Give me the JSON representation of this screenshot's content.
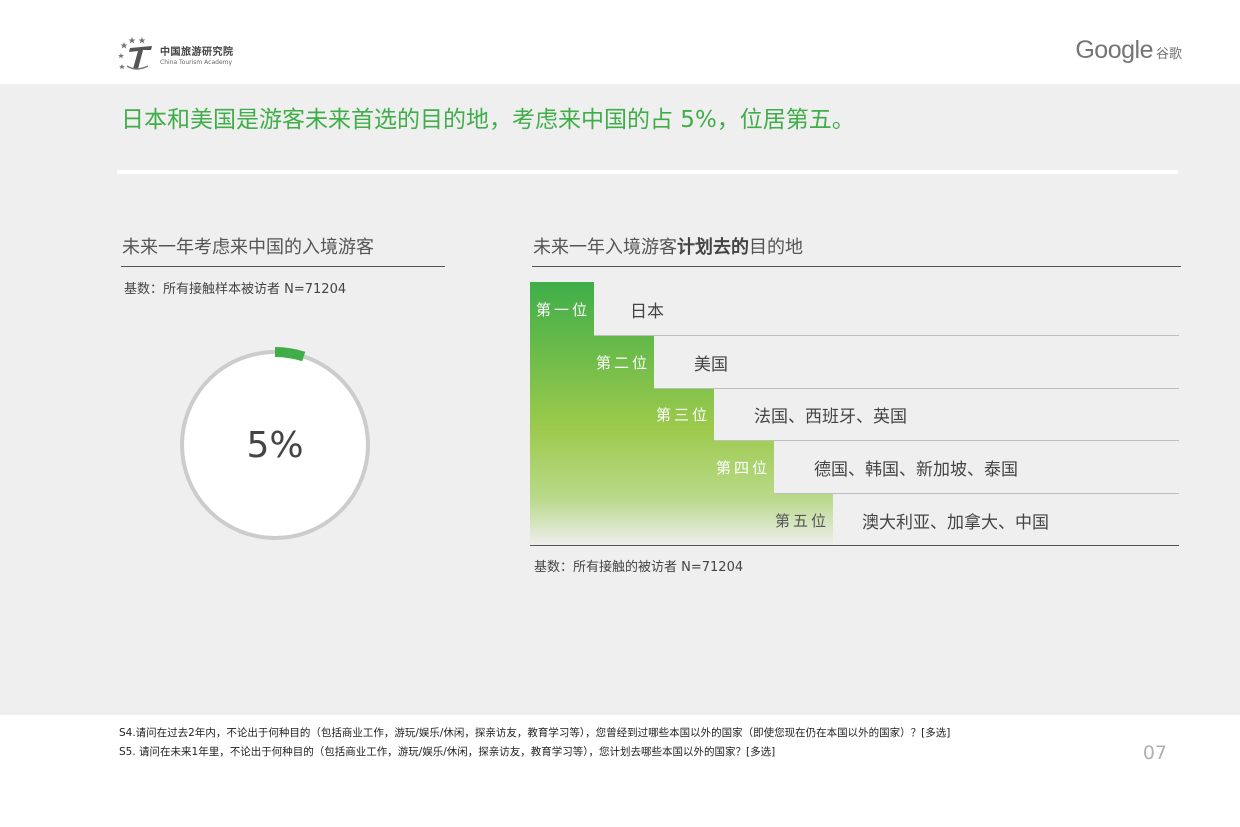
{
  "header": {
    "org_name_cn": "中国旅游研究院",
    "org_name_en": "China Tourism Academy",
    "brand": "Google",
    "brand_cn": "谷歌"
  },
  "headline": "日本和美国是游客未来首选的目的地，考虑来中国的占 5%，位居第五。",
  "colors": {
    "accent_green": "#3fae49",
    "light_green": "#a5d14a",
    "panel_bg": "#efefef",
    "donut_ring": "#cccccc"
  },
  "left": {
    "title": "未来一年考虑来中国的入境游客",
    "base_note": "基数：所有接触样本被访者 N=71204"
  },
  "right": {
    "title_prefix": "未来一年入境游客",
    "title_bold": "计划去的",
    "title_suffix": "目的地",
    "base_note": "基数：所有接触的被访者 N=71204"
  },
  "chart_data": [
    {
      "type": "pie",
      "title": "未来一年考虑来中国的入境游客",
      "values": [
        5,
        95
      ],
      "value_label": "5%"
    },
    {
      "type": "table",
      "title": "未来一年入境游客计划去的目的地",
      "rows": [
        {
          "rank": "第一位",
          "destinations": "日本"
        },
        {
          "rank": "第二位",
          "destinations": "美国"
        },
        {
          "rank": "第三位",
          "destinations": "法国、西班牙、英国"
        },
        {
          "rank": "第四位",
          "destinations": "德国、韩国、新加坡、泰国"
        },
        {
          "rank": "第五位",
          "destinations": "澳大利亚、加拿大、中国"
        }
      ]
    }
  ],
  "footnotes": [
    "S4.请问在过去2年内，不论出于何种目的（包括商业工作，游玩/娱乐/休闲，探亲访友，教育学习等），您曾经到过哪些本国以外的国家（即使您现在仍在本国以外的国家）？[多选]",
    "S5. 请问在未来1年里，不论出于何种目的（包括商业工作，游玩/娱乐/休闲，探亲访友，教育学习等），您计划去哪些本国以外的国家？[多选]"
  ],
  "page_number": "07"
}
